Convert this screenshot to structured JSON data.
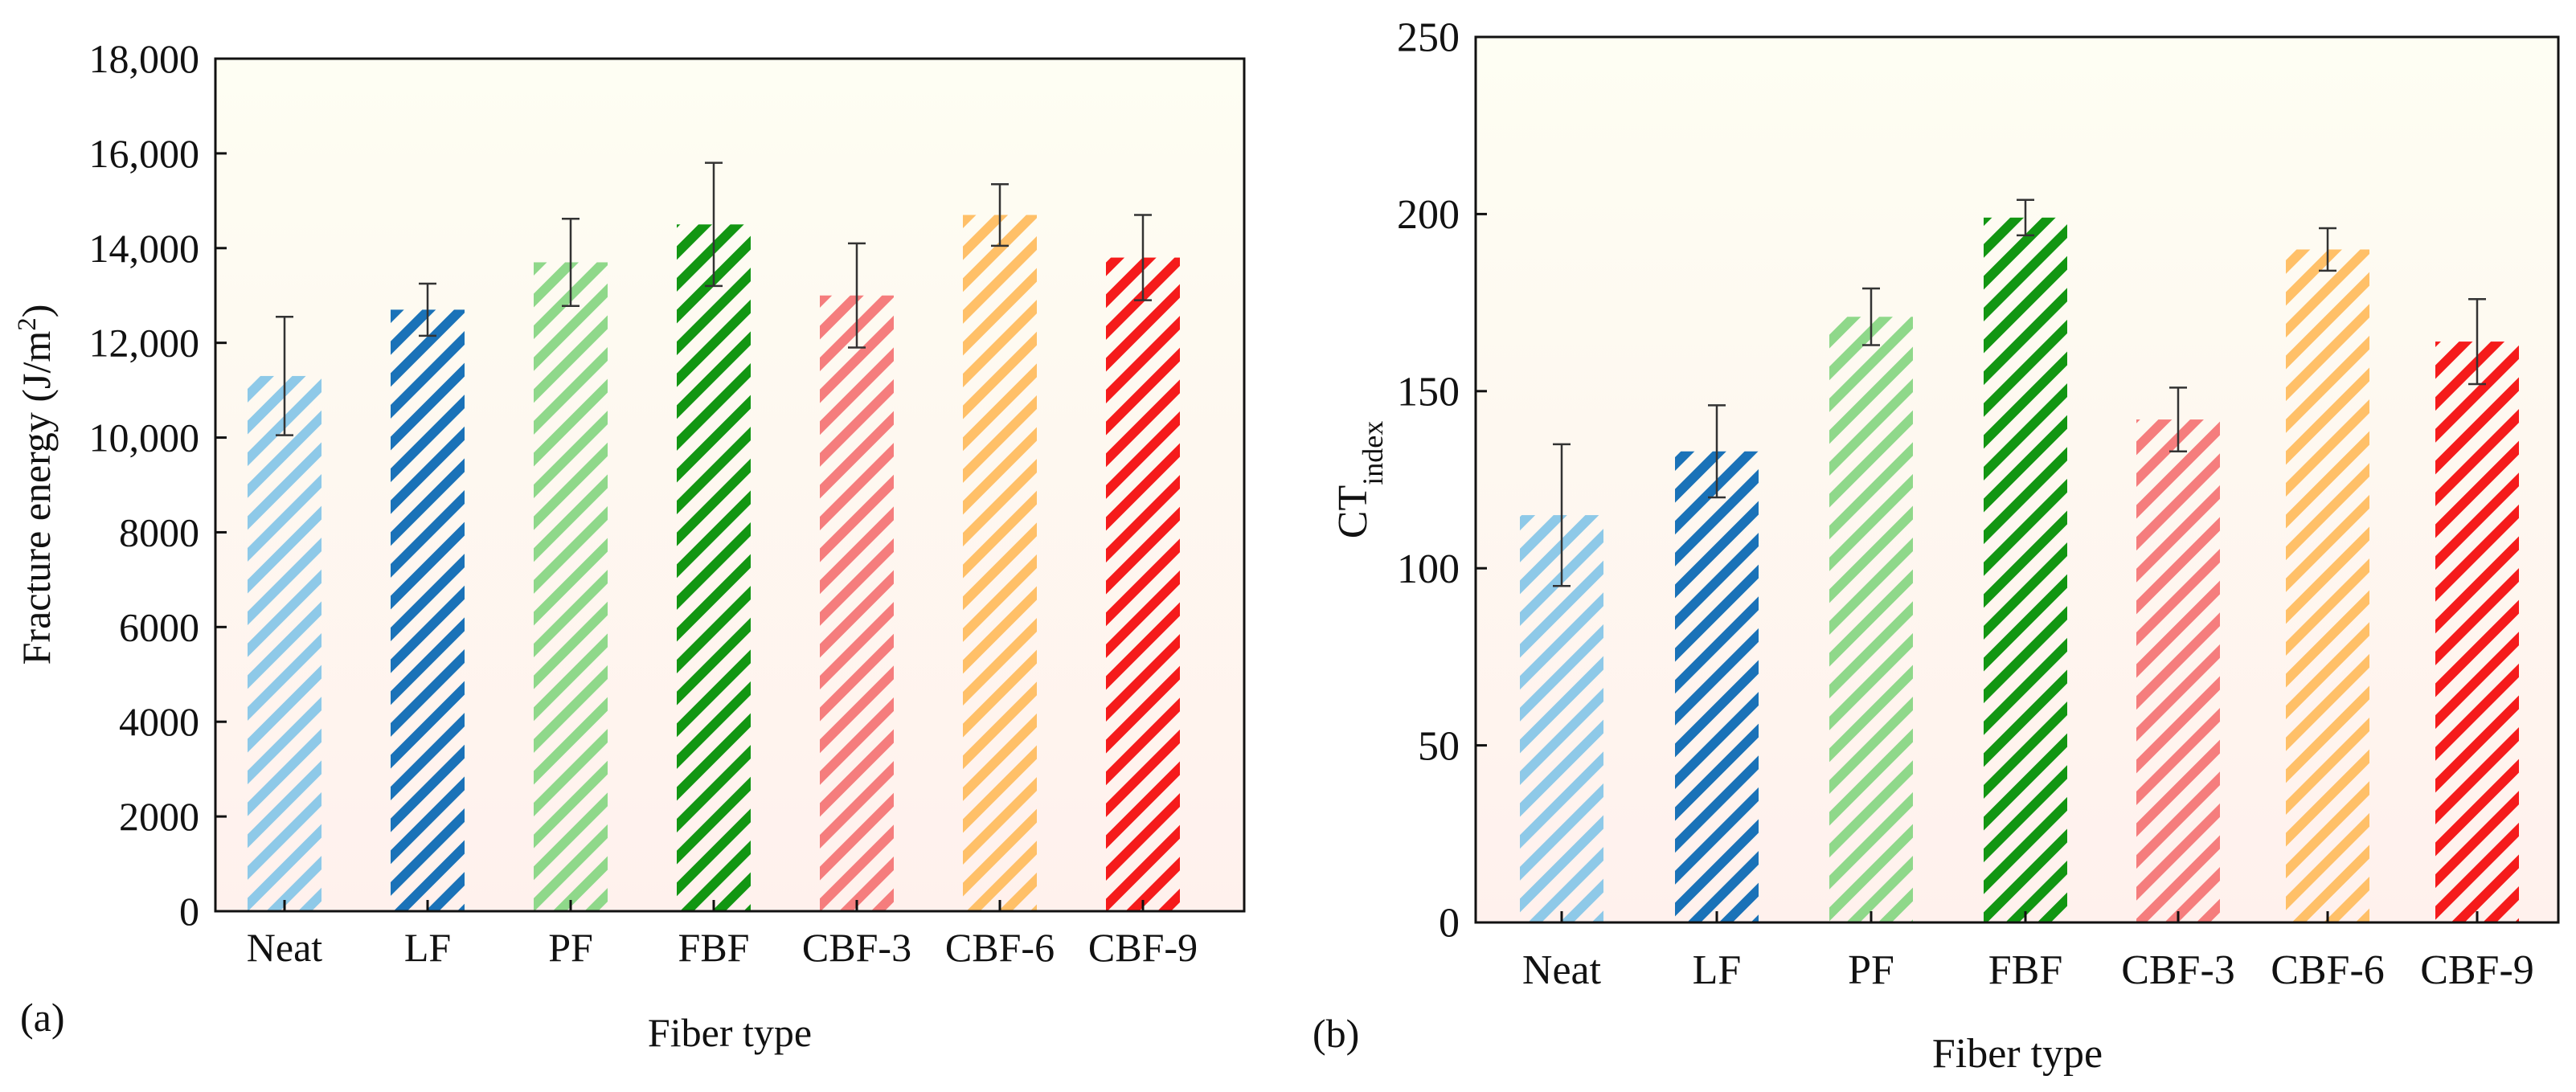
{
  "colors": [
    "#8ec9e8",
    "#1a72b8",
    "#8fd88a",
    "#129612",
    "#f57d7d",
    "#ffc068",
    "#f51b1b"
  ],
  "background_top": "#fefef3",
  "background_bottom": "#fff1ed",
  "chart_data": [
    {
      "type": "bar",
      "panel_label": "(a)",
      "title": "",
      "xlabel": "Fiber type",
      "ylabel_main": "Fracture energy (J/m",
      "ylabel_sup": "2",
      "ylabel_end": ")",
      "categories": [
        "Neat",
        "LF",
        "PF",
        "FBF",
        "CBF-3",
        "CBF-6",
        "CBF-9"
      ],
      "values": [
        11300,
        12700,
        13700,
        14500,
        13000,
        14700,
        13800
      ],
      "errors": [
        1250,
        550,
        920,
        1300,
        1100,
        650,
        900
      ],
      "ylim": [
        0,
        18000
      ],
      "yticks": [
        0,
        2000,
        4000,
        6000,
        8000,
        10000,
        12000,
        14000,
        16000,
        18000
      ],
      "ytick_labels": [
        "0",
        "2000",
        "4000",
        "6000",
        "8000",
        "10,000",
        "12,000",
        "14,000",
        "16,000",
        "18,000"
      ],
      "grid": false,
      "hatch": "diagonal"
    },
    {
      "type": "bar",
      "panel_label": "(b)",
      "title": "",
      "xlabel": "Fiber type",
      "ylabel_main": "CT",
      "ylabel_sub": "index",
      "categories": [
        "Neat",
        "LF",
        "PF",
        "FBF",
        "CBF-3",
        "CBF-6",
        "CBF-9"
      ],
      "values": [
        115,
        133,
        171,
        199,
        142,
        190,
        164
      ],
      "errors": [
        20,
        13,
        8,
        5,
        9,
        6,
        12
      ],
      "ylim": [
        0,
        250
      ],
      "yticks": [
        0,
        50,
        100,
        150,
        200,
        250
      ],
      "ytick_labels": [
        "0",
        "50",
        "100",
        "150",
        "200",
        "250"
      ],
      "grid": false,
      "hatch": "diagonal"
    }
  ]
}
